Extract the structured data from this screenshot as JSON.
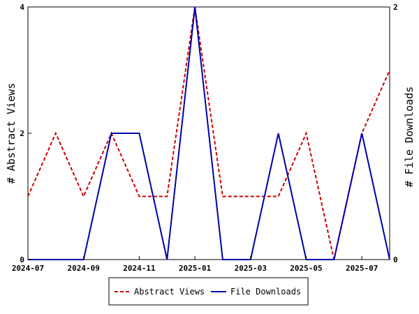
{
  "chart_data": {
    "type": "line",
    "x": [
      "2024-07",
      "2024-08",
      "2024-09",
      "2024-10",
      "2024-11",
      "2024-12",
      "2025-01",
      "2025-02",
      "2025-03",
      "2025-04",
      "2025-05",
      "2025-06",
      "2025-07",
      "2025-08"
    ],
    "x_tick_labels": [
      "2024-07",
      "2024-09",
      "2024-11",
      "2025-01",
      "2025-03",
      "2025-05",
      "2025-07"
    ],
    "series": [
      {
        "name": "Abstract Views",
        "axis": "left",
        "color": "#cc0000",
        "style": "dashed",
        "values": [
          1,
          2,
          1,
          2,
          1,
          1,
          4,
          1,
          1,
          1,
          2,
          0,
          2,
          3
        ]
      },
      {
        "name": "File Downloads",
        "axis": "right",
        "color": "#0000aa",
        "style": "solid",
        "values": [
          0,
          0,
          0,
          1,
          1,
          0,
          2,
          0,
          0,
          1,
          0,
          0,
          1,
          0
        ]
      }
    ],
    "y_left": {
      "label": "# Abstract Views",
      "ylim": [
        0,
        4
      ],
      "ticks": [
        "0",
        "2",
        "4"
      ]
    },
    "y_right": {
      "label": "# File Downloads",
      "ylim": [
        0,
        2
      ],
      "ticks": [
        "0",
        "2"
      ]
    },
    "grid": false,
    "legend": "bottom"
  }
}
